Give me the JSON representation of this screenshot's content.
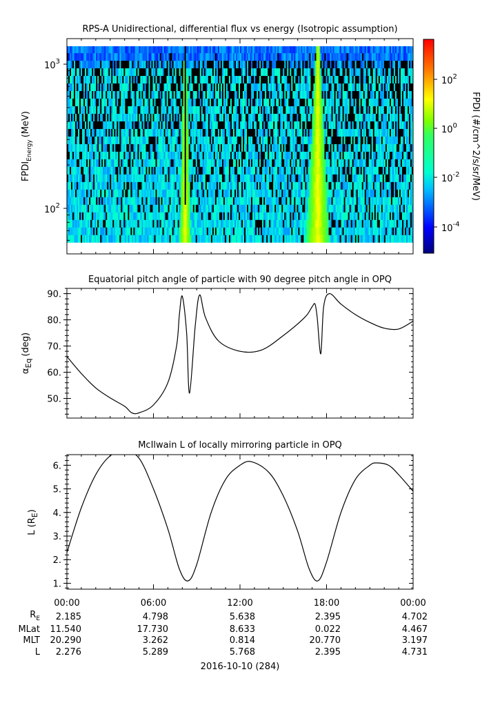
{
  "panels": {
    "spectrogram": {
      "title": "RPS-A Unidirectional, differential flux vs energy (Isotropic assumption)",
      "ylabel_main": "FPDI",
      "ylabel_sub": "Energy",
      "ylabel_unit": "(MeV)",
      "y_ticks": [
        {
          "base": "10",
          "exp": "3",
          "value": 1000
        },
        {
          "base": "10",
          "exp": "2",
          "value": 100
        }
      ],
      "colorbar_label": "FPDI (#/cm^2/s/sr/MeV)",
      "colorbar_ticks": [
        {
          "base": "10",
          "exp": "2",
          "value": 100
        },
        {
          "base": "10",
          "exp": "0",
          "value": 1
        },
        {
          "base": "10",
          "exp": "-2",
          "value": 0.01
        },
        {
          "base": "10",
          "exp": "-4",
          "value": 0.0001
        }
      ]
    },
    "pitch": {
      "title": "Equatorial pitch angle of particle with 90 degree pitch angle in OPQ",
      "ylabel_main": "α",
      "ylabel_sub": "Eq",
      "ylabel_unit": "(deg)",
      "y_ticks": [
        "90.",
        "80.",
        "70.",
        "60.",
        "50."
      ]
    },
    "lshell": {
      "title": "McIlwain L of locally mirroring particle in OPQ",
      "ylabel_main": "L (R",
      "ylabel_sub": "E",
      "ylabel_close": ")",
      "y_ticks": [
        "6.",
        "5.",
        "4.",
        "3.",
        "2.",
        "1."
      ]
    }
  },
  "x_ticks": [
    "00:00",
    "06:00",
    "12:00",
    "18:00",
    "00:00"
  ],
  "ephemeris": {
    "labels": {
      "re_main": "R",
      "re_sub": "E",
      "mlat": "MLat",
      "mlt": "MLT",
      "l": "L"
    },
    "columns": [
      {
        "re": "2.185",
        "mlat": "11.540",
        "mlt": "20.290",
        "l": "2.276"
      },
      {
        "re": "4.798",
        "mlat": "17.730",
        "mlt": "3.262",
        "l": "5.289"
      },
      {
        "re": "5.638",
        "mlat": "8.633",
        "mlt": "0.814",
        "l": "5.768"
      },
      {
        "re": "2.395",
        "mlat": "0.022",
        "mlt": "20.770",
        "l": "2.395"
      },
      {
        "re": "4.702",
        "mlat": "4.467",
        "mlt": "3.197",
        "l": "4.731"
      }
    ]
  },
  "date_label": "2016-10-10 (284)",
  "chart_data": [
    {
      "type": "heatmap",
      "title": "RPS-A Unidirectional, differential flux vs energy (Isotropic assumption)",
      "xlabel": "",
      "ylabel": "FPDI Energy (MeV)",
      "x_range_hours": [
        0,
        24
      ],
      "y_scale": "log",
      "ylim": [
        58,
        1350
      ],
      "colorbar_scale": "log",
      "colorbar_range": [
        1e-05,
        3000
      ],
      "colormap": "rainbow",
      "colors": {
        "low": "#000080",
        "mid": "#00ff80",
        "high": "#ff0000"
      },
      "features": [
        {
          "time_hours": 8.2,
          "description": "narrow flux enhancement",
          "peak_flux": 10
        },
        {
          "time_hours": 17.4,
          "description": "broad flux enhancement",
          "peak_flux": 50
        }
      ]
    },
    {
      "type": "line",
      "title": "Equatorial pitch angle of particle with 90 degree pitch angle in OPQ",
      "ylabel": "αEq (deg)",
      "ylim": [
        42.5,
        92
      ],
      "x": [
        0,
        1,
        2,
        3,
        4,
        4.5,
        5,
        6,
        7,
        7.6,
        7.8,
        8.0,
        8.3,
        8.5,
        8.9,
        9.2,
        9.6,
        10.5,
        12,
        13.5,
        15,
        16.5,
        17.0,
        17.2,
        17.35,
        17.6,
        17.8,
        18.2,
        19,
        20,
        21,
        22,
        23,
        24
      ],
      "y": [
        66,
        59.5,
        54,
        50.2,
        47,
        44.5,
        44.5,
        47.5,
        56,
        70,
        82,
        89,
        75,
        52,
        78,
        89.5,
        81,
        72,
        68,
        68.5,
        74,
        81,
        85,
        86,
        81,
        67,
        85,
        90,
        86,
        82,
        79,
        76.8,
        76.5,
        79.5
      ],
      "colors": {
        "line": "#000000"
      }
    },
    {
      "type": "line",
      "title": "McIlwain L of locally mirroring particle in OPQ",
      "ylabel": "L (RE)",
      "ylim": [
        0.75,
        6.45
      ],
      "x": [
        0,
        1,
        2,
        3,
        4,
        5,
        6,
        7,
        7.8,
        8.4,
        9,
        10,
        11,
        12,
        12.8,
        14,
        15,
        16,
        16.8,
        17.4,
        18,
        19,
        20,
        21,
        21.5,
        22.3,
        23,
        24
      ],
      "y": [
        2.3,
        4.2,
        5.6,
        6.4,
        6.6,
        6.3,
        5.0,
        3.3,
        1.6,
        1.1,
        1.8,
        4.0,
        5.4,
        6.0,
        6.15,
        5.7,
        4.7,
        3.2,
        1.6,
        1.1,
        1.9,
        4.0,
        5.4,
        6.0,
        6.1,
        6.0,
        5.6,
        4.9
      ],
      "colors": {
        "line": "#000000"
      }
    }
  ]
}
